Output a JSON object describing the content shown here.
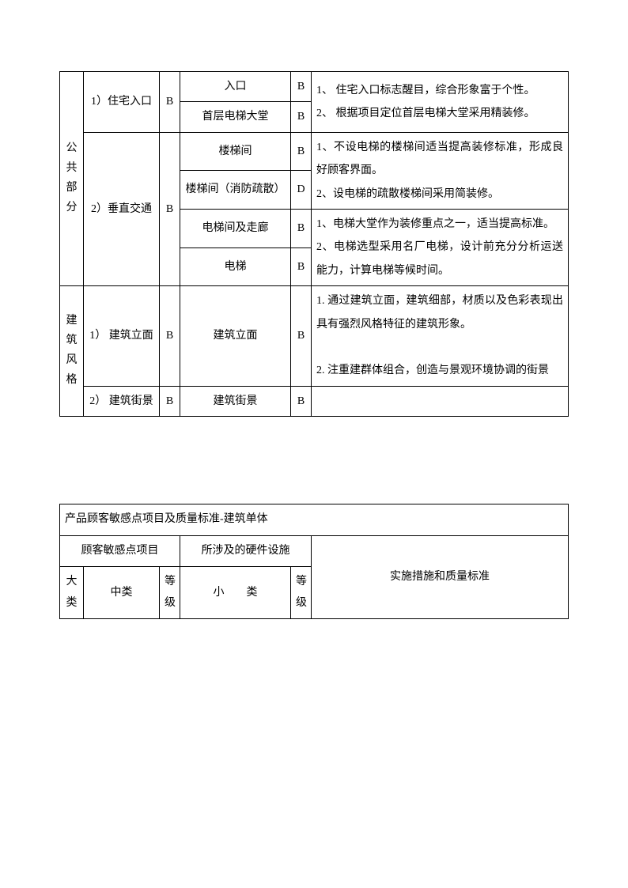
{
  "table1": {
    "bigcat1": "公共部分",
    "bigcat2": "建筑风格",
    "mid1": "1）住宅入口",
    "mid2": "2）垂直交通",
    "mid3": "1） 建筑立面",
    "mid4": "2） 建筑街景",
    "grade_B": "B",
    "grade_D": "D",
    "s1": "入口",
    "s2": "首层电梯大堂",
    "s3": "楼梯间",
    "s4": "楼梯间（消防疏散）",
    "s5": "电梯间及走廊",
    "s6": "电梯",
    "s7": "建筑立面",
    "s8": "建筑街景",
    "desc1": "1、 住宅入口标志醒目，综合形象富于个性。\n2、 根据项目定位首层电梯大堂采用精装修。",
    "desc2": "1、不设电梯的楼梯间适当提高装修标准，形成良好顾客界面。\n2、设电梯的疏散楼梯间采用简装修。",
    "desc3": "1、电梯大堂作为装修重点之一，适当提高标准。\n2、电梯选型采用名厂电梯，设计前充分分析运送能力，计算电梯等候时间。",
    "desc4": "1. 通过建筑立面，建筑细部，材质以及色彩表现出具有强烈风格特征的建筑形象。\n\n2. 注重建群体组合，创造与景观环境协调的街景"
  },
  "table2": {
    "title": "产品顾客敏感点项目及质量标准-建筑单体",
    "h1": "顾客敏感点项目",
    "h2": "所涉及的硬件设施",
    "h3": "实施措施和质量标准",
    "c1": "大类",
    "c2": "中类",
    "c3": "等级",
    "c4": "小　　类",
    "c5": "等级"
  }
}
